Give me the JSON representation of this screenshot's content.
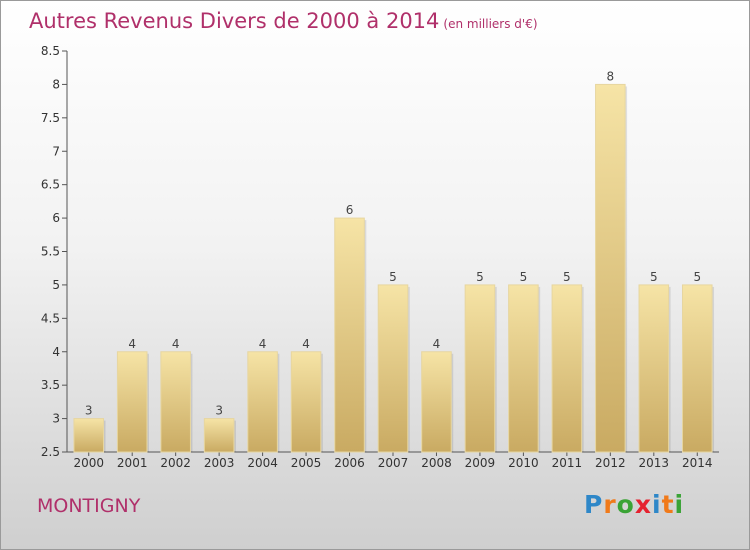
{
  "title": "Autres Revenus Divers de 2000 à 2014",
  "title_unit": "(en milliers d'€)",
  "place": "MONTIGNY",
  "logo": {
    "letters": [
      "P",
      "r",
      "o",
      "x",
      "i",
      "t",
      "i"
    ],
    "colors": [
      "#2e87c8",
      "#f07a1a",
      "#3aa335",
      "#e5222f",
      "#2e87c8",
      "#f07a1a",
      "#3aa335"
    ]
  },
  "colors": {
    "bar_light": "#f6e4a6",
    "bar_dark": "#c9aa62",
    "accent": "#b0306a"
  },
  "chart_data": {
    "type": "bar",
    "categories": [
      "2000",
      "2001",
      "2002",
      "2003",
      "2004",
      "2005",
      "2006",
      "2007",
      "2008",
      "2009",
      "2010",
      "2011",
      "2012",
      "2013",
      "2014"
    ],
    "values": [
      3,
      4,
      4,
      3,
      4,
      4,
      6,
      5,
      4,
      5,
      5,
      5,
      8,
      5,
      5
    ],
    "data_labels": [
      "3",
      "4",
      "4",
      "3",
      "4",
      "4",
      "6",
      "5",
      "4",
      "5",
      "5",
      "5",
      "8",
      "5",
      "5"
    ],
    "title": "Autres Revenus Divers de 2000 à 2014",
    "xlabel": "",
    "ylabel": "",
    "ylim": [
      2.5,
      8.5
    ],
    "yticks": [
      2.5,
      3,
      3.5,
      4,
      4.5,
      5,
      5.5,
      6,
      6.5,
      7,
      7.5,
      8,
      8.5
    ],
    "ytick_labels": [
      "2.5",
      "3",
      "3.5",
      "4",
      "4.5",
      "5",
      "5.5",
      "6",
      "6.5",
      "7",
      "7.5",
      "8",
      "8.5"
    ],
    "grid": false,
    "legend": "none"
  }
}
